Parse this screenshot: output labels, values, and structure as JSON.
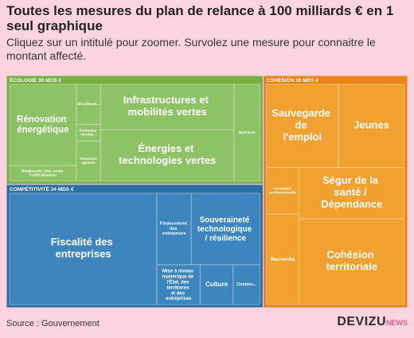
{
  "chart_data": {
    "type": "treemap",
    "title": "Toutes les mesures du plan de relance à 100 milliards € en 1 seul graphique",
    "subtitle": "Cliquez sur un intitulé pour zoomer. Survolez une mesure pour connaitre le montant affecté.",
    "source": "Source : Gouvernement",
    "brand": "DEVIZU",
    "brand_suffix": "NEWS",
    "groups": [
      {
        "name": "ÉCOLOGIE",
        "value": 30,
        "value_label": "30 MDS €",
        "color": "#76b041",
        "leaf_color": "#8dc266",
        "children": [
          {
            "name": "Rénovation énergétique",
            "value": 6.7
          },
          {
            "name": "Biodiversité, lutte contre l'artificialisation",
            "value": 1.3
          },
          {
            "name": "Décarbonat...",
            "value": 1.2
          },
          {
            "name": "Économie circulai...",
            "value": 0.5
          },
          {
            "name": "Transition agricole",
            "value": 1.2
          },
          {
            "name": "Infrastructures et mobilités vertes",
            "value": 7.5
          },
          {
            "name": "Énergies et technologies vertes",
            "value": 8.5
          },
          {
            "name": "Bpifrance",
            "value": 3.1
          }
        ]
      },
      {
        "name": "COMPÉTITIVITÉ",
        "value": 34,
        "value_label": "34 MDS €",
        "color": "#2a6ea6",
        "leaf_color": "#3d85bd",
        "children": [
          {
            "name": "Fiscalité des entreprises",
            "value": 20
          },
          {
            "name": "Financement des entreprises",
            "value": 3.0
          },
          {
            "name": "Souveraineté technologique / résilience",
            "value": 6.0
          },
          {
            "name": "Mise à niveau numérique de l'État, des territoires et des entreprises",
            "value": 2.1
          },
          {
            "name": "Culture",
            "value": 1.6
          },
          {
            "name": "Commu...",
            "value": 1.3
          }
        ]
      },
      {
        "name": "COHÉSION",
        "value": 36,
        "value_label": "36 MDS €",
        "color": "#e8841a",
        "leaf_color": "#f0a12f",
        "children": [
          {
            "name": "Sauvegarde de l'emploi",
            "value": 7.1
          },
          {
            "name": "Jeunes",
            "value": 6.5
          },
          {
            "name": "Formation professionnelle",
            "value": 1.8
          },
          {
            "name": "Recherche",
            "value": 3.5
          },
          {
            "name": "Ségur de la santé / Dépendance",
            "value": 6.4
          },
          {
            "name": "Cohésion territoriale",
            "value": 10.7
          }
        ]
      }
    ]
  }
}
